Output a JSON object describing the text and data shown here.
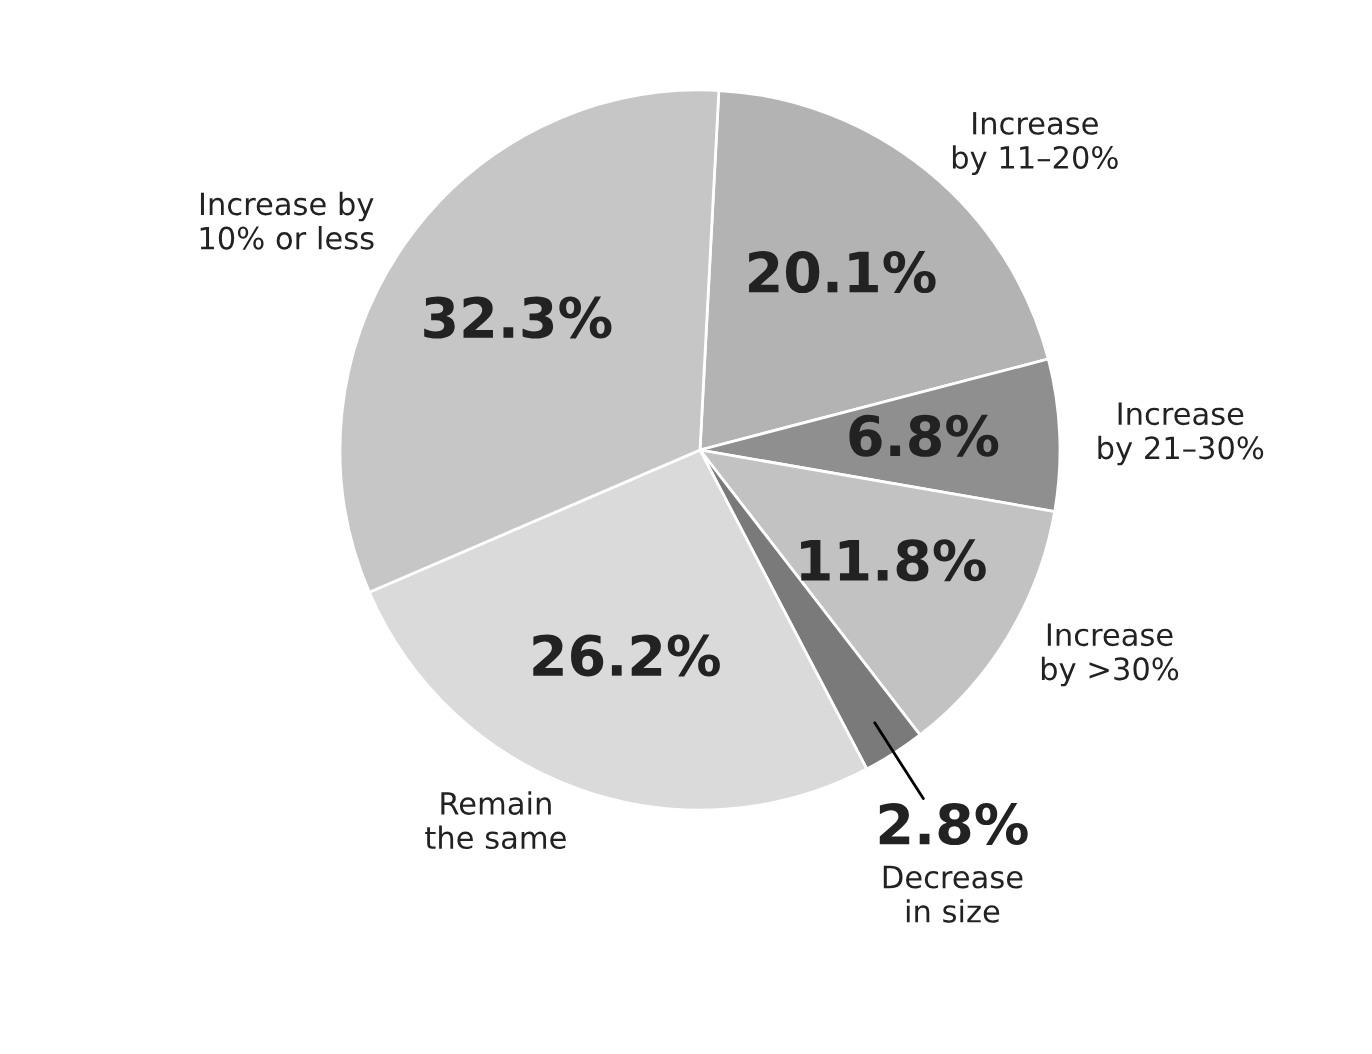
{
  "chart_data": {
    "type": "pie",
    "categories": [
      "Increase\nby 11–20%",
      "Increase\nby 21–30%",
      "Increase\nby >30%",
      "Decrease\nin size",
      "Remain\nthe same",
      "Increase by\n10% or less"
    ],
    "values": [
      20.1,
      6.8,
      11.8,
      2.8,
      26.2,
      32.3
    ],
    "colors": [
      "#b3b3b3",
      "#8f8f8f",
      "#c2c2c2",
      "#7a7a7a",
      "#dadada",
      "#c6c6c6"
    ],
    "value_labels": [
      "20.1%",
      "6.8%",
      "11.8%",
      "2.8%",
      "26.2%",
      "32.3%"
    ]
  }
}
